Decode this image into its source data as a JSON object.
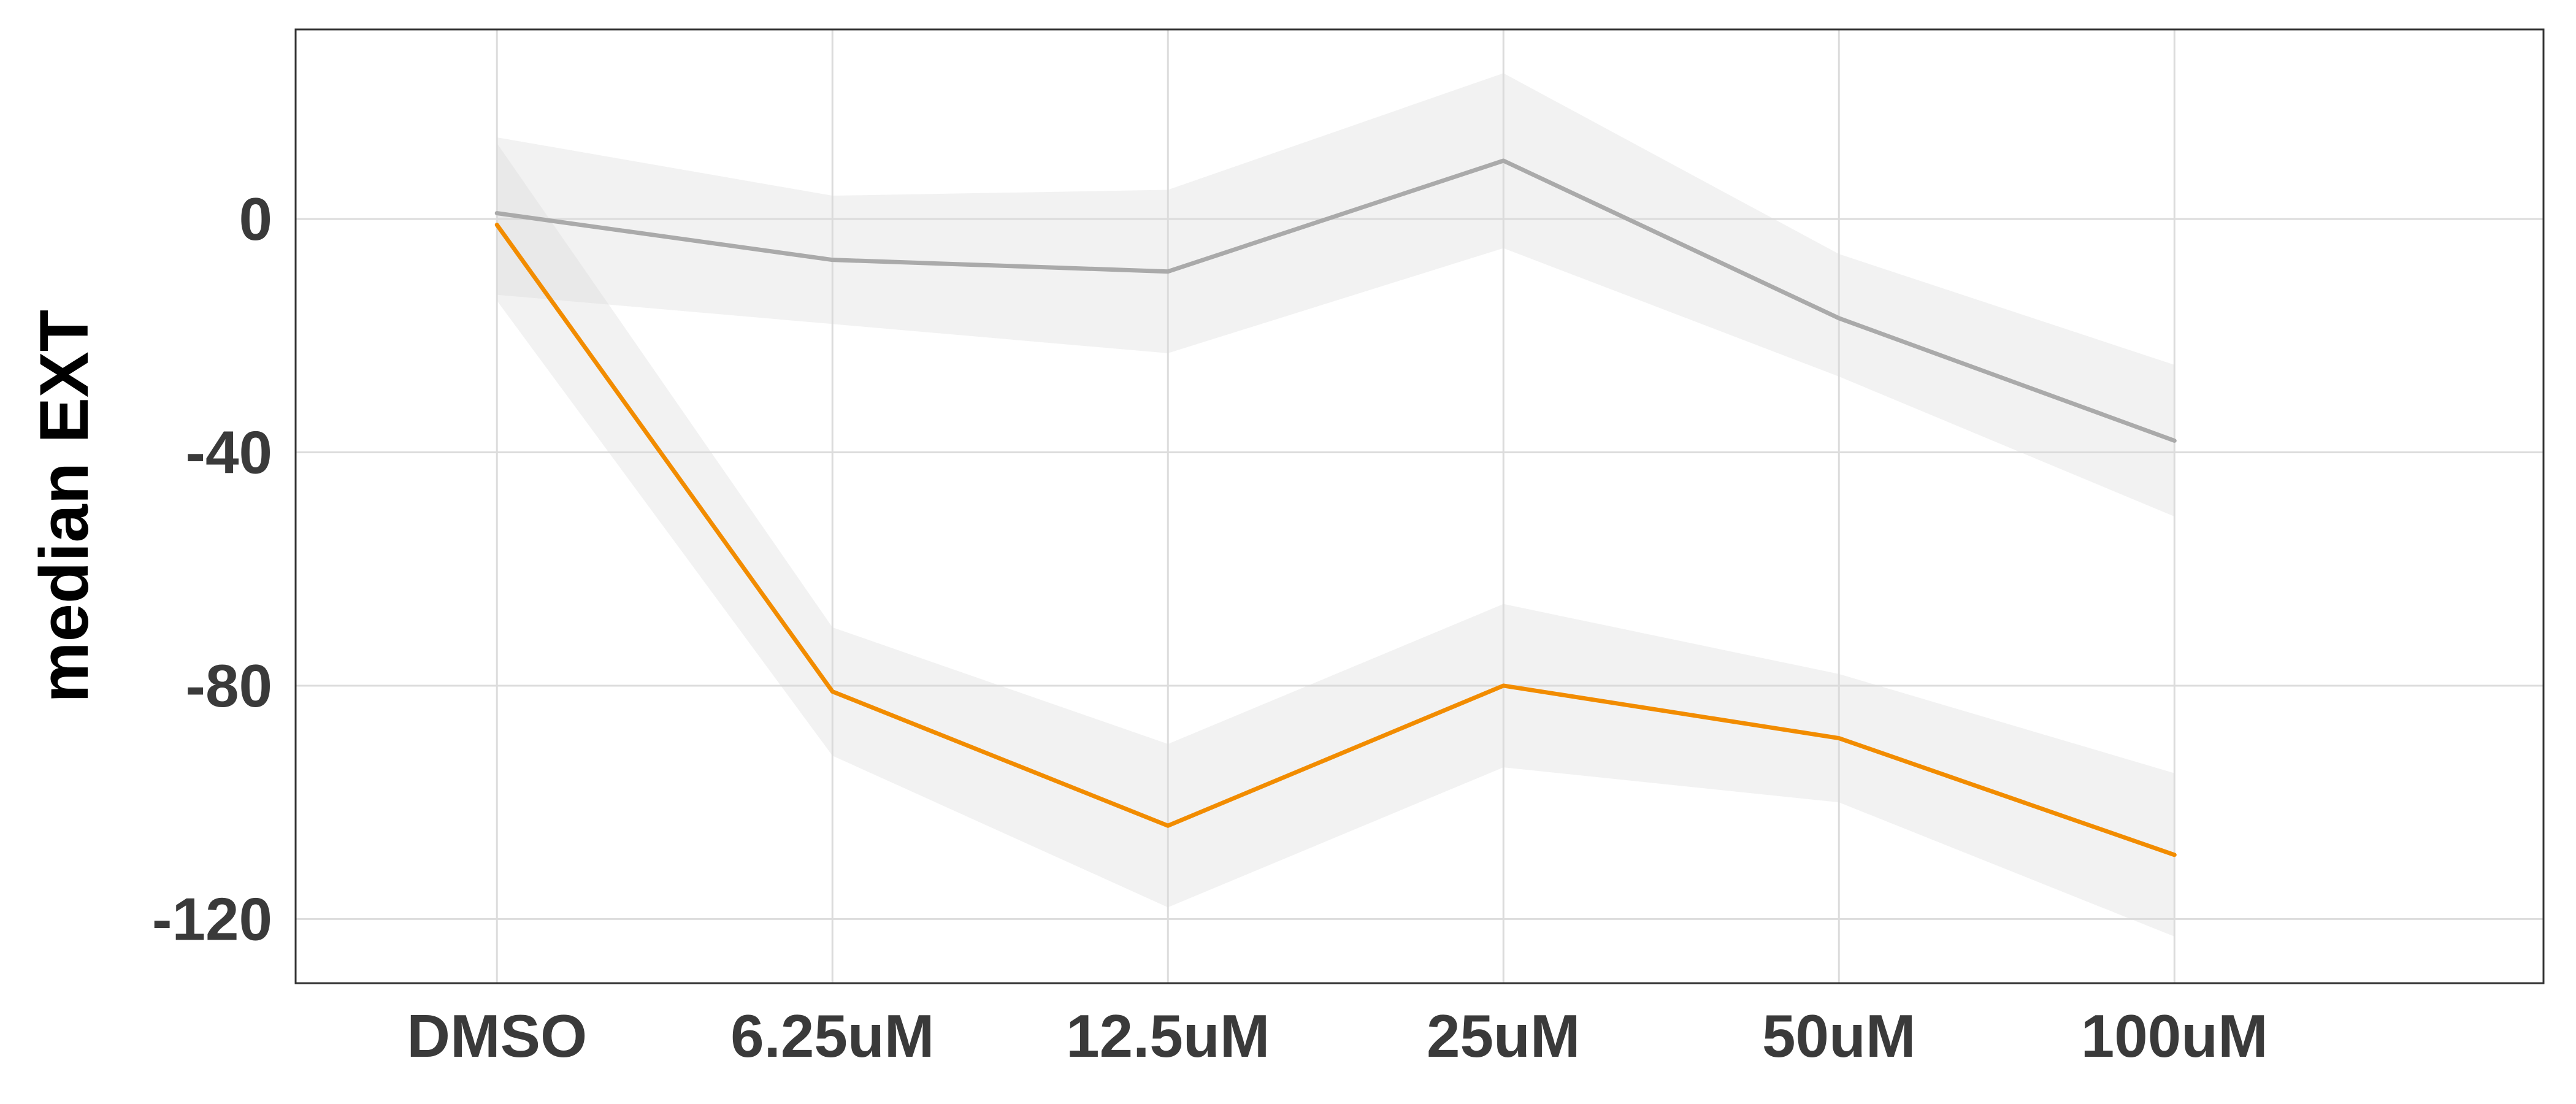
{
  "chart_data": {
    "type": "line",
    "categories": [
      "DMSO",
      "6.25uM",
      "12.5uM",
      "25uM",
      "50uM",
      "100uM"
    ],
    "xlabel": "",
    "ylabel": "median EXT",
    "ylim": [
      -131,
      32.5
    ],
    "yticks": [
      0,
      -40,
      -80,
      -120
    ],
    "ytick_labels": [
      "0",
      "-40",
      "-80",
      "-120"
    ],
    "grid": true,
    "legend": "none",
    "series": [
      {
        "color": "#aaaaaa",
        "values": [
          1,
          -7,
          -9,
          10,
          -17,
          -38
        ],
        "ci_lower": [
          -13,
          -18,
          -23,
          -5,
          -27,
          -51
        ],
        "ci_upper": [
          14,
          4,
          5,
          25,
          -6,
          -25
        ]
      },
      {
        "color": "#f28c00",
        "values": [
          -1,
          -81,
          -104,
          -80,
          -89,
          -109
        ],
        "ci_lower": [
          -14,
          -92,
          -118,
          -94,
          -100,
          -123
        ],
        "ci_upper": [
          13,
          -70,
          -90,
          -66,
          -78,
          -95
        ]
      }
    ],
    "band_color": "#d9d9d9"
  }
}
